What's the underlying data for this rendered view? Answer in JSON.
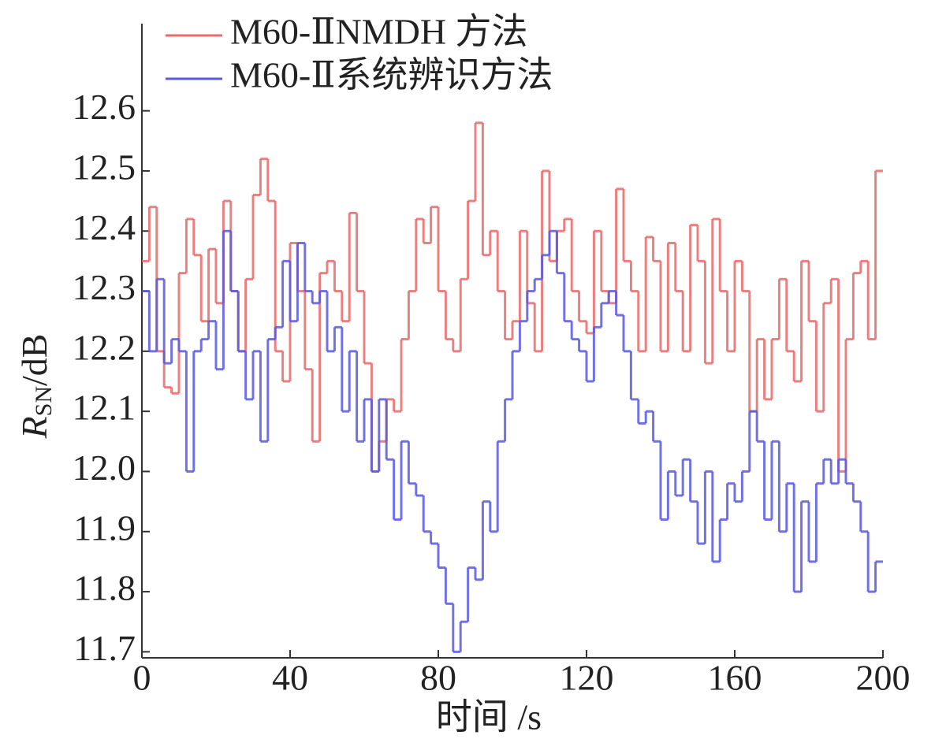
{
  "chart_data": {
    "type": "step",
    "x_label": "时间 /s",
    "y_label": {
      "symbol": "R",
      "subscript": "SN",
      "unit": "/dB"
    },
    "x": [
      0,
      2,
      4,
      6,
      8,
      10,
      12,
      14,
      16,
      18,
      20,
      22,
      24,
      26,
      28,
      30,
      32,
      34,
      36,
      38,
      40,
      42,
      44,
      46,
      48,
      50,
      52,
      54,
      56,
      58,
      60,
      62,
      64,
      66,
      68,
      70,
      72,
      74,
      76,
      78,
      80,
      82,
      84,
      86,
      88,
      90,
      92,
      94,
      96,
      98,
      100,
      102,
      104,
      106,
      108,
      110,
      112,
      114,
      116,
      118,
      120,
      122,
      124,
      126,
      128,
      130,
      132,
      134,
      136,
      138,
      140,
      142,
      144,
      146,
      148,
      150,
      152,
      154,
      156,
      158,
      160,
      162,
      164,
      166,
      168,
      170,
      172,
      174,
      176,
      178,
      180,
      182,
      184,
      186,
      188,
      190,
      192,
      194,
      196,
      198
    ],
    "series": [
      {
        "name": "M60-ⅡNMDH 方法",
        "color": "#e86a6a",
        "values": [
          12.35,
          12.44,
          12.2,
          12.14,
          12.13,
          12.33,
          12.42,
          12.36,
          12.25,
          12.37,
          12.28,
          12.45,
          12.3,
          12.2,
          12.32,
          12.46,
          12.52,
          12.45,
          12.2,
          12.15,
          12.38,
          12.3,
          12.17,
          12.05,
          12.33,
          12.35,
          12.3,
          12.25,
          12.43,
          12.3,
          12.18,
          12.0,
          12.05,
          12.12,
          12.1,
          12.22,
          12.3,
          12.42,
          12.38,
          12.44,
          12.3,
          12.22,
          12.2,
          12.32,
          12.45,
          12.58,
          12.36,
          12.4,
          12.3,
          12.22,
          12.25,
          12.4,
          12.28,
          12.2,
          12.5,
          12.35,
          12.4,
          12.42,
          12.3,
          12.25,
          12.23,
          12.4,
          12.3,
          12.28,
          12.47,
          12.35,
          12.3,
          12.2,
          12.39,
          12.35,
          12.2,
          12.38,
          12.3,
          12.2,
          12.41,
          12.35,
          12.18,
          12.42,
          12.3,
          12.2,
          12.35,
          12.3,
          12.1,
          12.22,
          12.12,
          12.22,
          12.32,
          12.2,
          12.15,
          12.35,
          12.25,
          12.1,
          12.28,
          12.32,
          12.0,
          12.22,
          12.33,
          12.35,
          12.22,
          12.5
        ]
      },
      {
        "name": "M60-Ⅱ系统辨识方法",
        "color": "#5a5ae0",
        "values": [
          12.3,
          12.2,
          12.32,
          12.18,
          12.22,
          12.2,
          12.0,
          12.2,
          12.22,
          12.25,
          12.17,
          12.4,
          12.3,
          12.2,
          12.12,
          12.2,
          12.05,
          12.22,
          12.24,
          12.35,
          12.25,
          12.38,
          12.3,
          12.28,
          12.3,
          12.2,
          12.24,
          12.1,
          12.2,
          12.05,
          12.12,
          12.0,
          12.12,
          12.02,
          11.92,
          12.05,
          11.98,
          11.96,
          11.9,
          11.88,
          11.84,
          11.78,
          11.7,
          11.75,
          11.84,
          11.82,
          11.95,
          11.9,
          12.05,
          12.12,
          12.2,
          12.25,
          12.3,
          12.32,
          12.36,
          12.4,
          12.33,
          12.25,
          12.22,
          12.2,
          12.15,
          12.24,
          12.28,
          12.3,
          12.26,
          12.2,
          12.12,
          12.08,
          12.1,
          12.05,
          11.92,
          12.0,
          11.96,
          12.02,
          11.95,
          11.88,
          12.0,
          11.85,
          11.92,
          11.98,
          11.95,
          12.0,
          12.1,
          12.05,
          11.92,
          12.05,
          11.9,
          11.98,
          11.8,
          11.95,
          11.85,
          11.98,
          12.02,
          11.98,
          12.02,
          11.98,
          11.95,
          11.9,
          11.8,
          11.85
        ]
      }
    ],
    "xlim": [
      0,
      200
    ],
    "xticks": [
      0,
      40,
      80,
      120,
      160,
      200
    ],
    "ylim": [
      11.69,
      12.745
    ],
    "yticks": [
      11.7,
      11.8,
      11.9,
      {
        "value": 12,
        "label": "12.0"
      },
      12.1,
      12.2,
      12.3,
      12.4,
      12.5,
      12.6
    ],
    "legend": "upper-left"
  }
}
